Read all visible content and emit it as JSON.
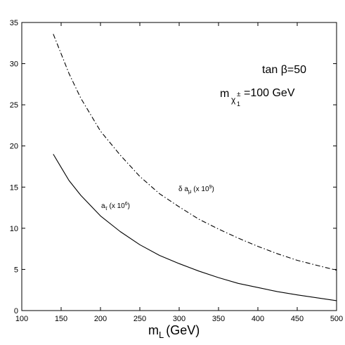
{
  "chart_data": {
    "type": "line",
    "title": "",
    "xlabel_main": "m",
    "xlabel_sub": "L",
    "xlabel_units": "(GeV)",
    "ylabel": "",
    "xlim": [
      100,
      500
    ],
    "ylim": [
      0,
      35
    ],
    "xticks": [
      100,
      150,
      200,
      250,
      300,
      350,
      400,
      450,
      500
    ],
    "yticks": [
      0,
      5,
      10,
      15,
      20,
      25,
      30,
      35
    ],
    "grid": false,
    "annotations": {
      "tanbeta": {
        "prefix": "tan ",
        "symbol": "β",
        "suffix": "=50"
      },
      "chargino": {
        "m": "m",
        "sub": "χ",
        "sub_sub": "1",
        "sup": "±",
        "value": "=100 GeV"
      },
      "amu": {
        "prefix": "δ a",
        "sub": "μ",
        "mid": " (x 10",
        "sup": "9",
        "end": ")"
      },
      "atau": {
        "prefix": "a",
        "sub": "τ",
        "mid": " (x 10",
        "sup": "6",
        "end": ")"
      }
    },
    "series": [
      {
        "key": "delta_a_mu",
        "style": "dashdot",
        "x": [
          140,
          150,
          160,
          175,
          200,
          225,
          250,
          275,
          300,
          325,
          350,
          375,
          400,
          425,
          450,
          475,
          500
        ],
        "y": [
          33.6,
          31.2,
          28.8,
          25.8,
          21.8,
          18.9,
          16.3,
          14.2,
          12.6,
          11.1,
          9.9,
          8.8,
          7.8,
          6.9,
          6.1,
          5.5,
          4.9
        ]
      },
      {
        "key": "a_tau",
        "style": "solid",
        "x": [
          140,
          150,
          160,
          175,
          200,
          225,
          250,
          275,
          300,
          325,
          350,
          375,
          400,
          425,
          450,
          475,
          500
        ],
        "y": [
          19.0,
          17.4,
          15.8,
          14.0,
          11.5,
          9.6,
          8.0,
          6.7,
          5.7,
          4.8,
          4.0,
          3.3,
          2.8,
          2.3,
          1.9,
          1.55,
          1.2
        ]
      }
    ]
  }
}
